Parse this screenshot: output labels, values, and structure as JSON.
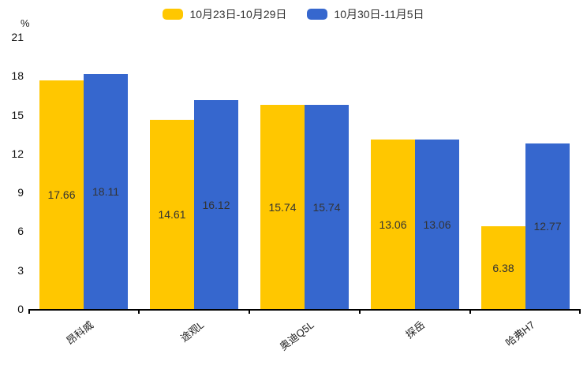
{
  "chart_data": {
    "type": "bar",
    "title": "",
    "unit_label": "%",
    "categories": [
      "昂科威",
      "途观L",
      "奥迪Q5L",
      "探岳",
      "哈弗H7"
    ],
    "series": [
      {
        "name": "10月23日-10月29日",
        "color": "#FFC700",
        "values": [
          17.66,
          14.61,
          15.74,
          13.06,
          6.38
        ]
      },
      {
        "name": "10月30日-11月5日",
        "color": "#3667CE",
        "values": [
          18.11,
          16.12,
          15.74,
          13.06,
          12.77
        ]
      }
    ],
    "y_ticks": [
      0,
      3,
      6,
      9,
      12,
      15,
      18,
      21
    ],
    "ylim": [
      0,
      21
    ],
    "grid": false,
    "legend_position": "top",
    "label_position": "inside-center",
    "value_label_color": "#333333",
    "axis_color": "#000000",
    "background_color": "#ffffff"
  }
}
